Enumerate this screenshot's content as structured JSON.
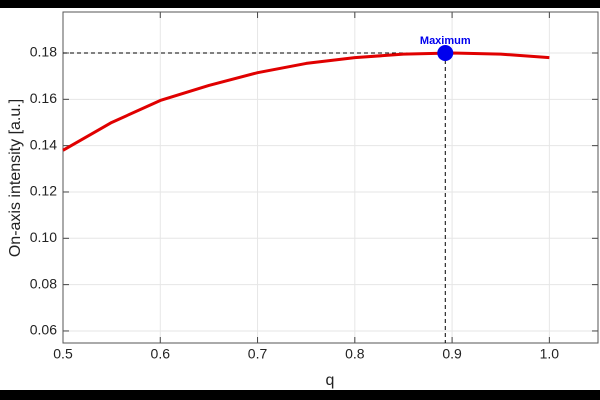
{
  "chart_data": {
    "type": "line",
    "x_label": "q",
    "y_label": "On-axis intensity [a.u.]",
    "x": [
      0.5,
      0.55,
      0.6,
      0.65,
      0.7,
      0.75,
      0.8,
      0.85,
      0.9,
      0.95,
      1.0
    ],
    "values": [
      0.138,
      0.15,
      0.1595,
      0.166,
      0.1715,
      0.1755,
      0.178,
      0.1795,
      0.18,
      0.1795,
      0.178
    ],
    "color": "#e00000",
    "maximum": {
      "label": "Maximum",
      "x": 0.893,
      "y": 0.18,
      "color": "#0000ee"
    },
    "xlim": [
      0.5,
      1.05
    ],
    "ylim": [
      0.0548,
      0.1977
    ],
    "xticks": [
      0.5,
      0.6,
      0.7,
      0.8,
      0.9,
      {
        "value": 1,
        "label": "1.0"
      }
    ],
    "yticks": [
      0.06,
      0.08,
      {
        "value": 0.1,
        "label": "0.10"
      },
      0.12,
      0.14,
      0.16,
      0.18
    ],
    "grid": true
  }
}
